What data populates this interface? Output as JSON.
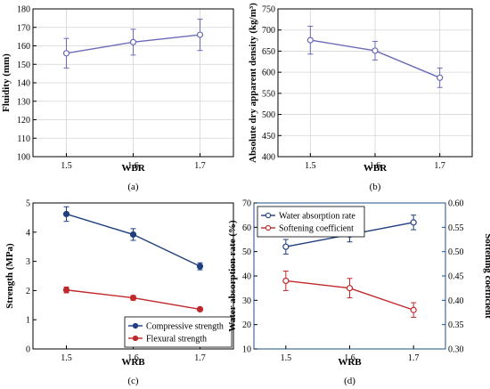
{
  "chart_data": [
    {
      "id": "a",
      "type": "line",
      "panel_label": "(a)",
      "xlabel": "WBR",
      "ylabel": "Fluidity (mm)",
      "x": [
        1.5,
        1.6,
        1.7
      ],
      "xticks": [
        "1.5",
        "1.6",
        "1.7"
      ],
      "xlim": [
        1.45,
        1.75
      ],
      "ylim": [
        100,
        180
      ],
      "yticks": [
        100,
        110,
        120,
        130,
        140,
        150,
        160,
        170,
        180
      ],
      "grid": true,
      "series": [
        {
          "values": [
            156,
            162,
            166
          ],
          "errors": [
            8,
            7,
            8.5
          ],
          "color": "#6a6ab8",
          "marker": "circle-open"
        }
      ]
    },
    {
      "id": "b",
      "type": "line",
      "panel_label": "(b)",
      "xlabel": "WBR",
      "ylabel": "Absolute dry apparent density (kg/m³)",
      "x": [
        1.5,
        1.6,
        1.7
      ],
      "xticks": [
        "1.5",
        "1.6",
        "1.7"
      ],
      "xlim": [
        1.45,
        1.75
      ],
      "ylim": [
        400,
        750
      ],
      "yticks": [
        400,
        450,
        500,
        550,
        600,
        650,
        700,
        750
      ],
      "grid": true,
      "series": [
        {
          "values": [
            676,
            651,
            587
          ],
          "errors": [
            33,
            22,
            23
          ],
          "color": "#6a6ab8",
          "marker": "circle-open"
        }
      ]
    },
    {
      "id": "c",
      "type": "line",
      "panel_label": "(c)",
      "xlabel": "WRB",
      "ylabel": "Strength (MPa)",
      "x": [
        1.5,
        1.6,
        1.7
      ],
      "xticks": [
        "1.5",
        "1.6",
        "1.7"
      ],
      "xlim": [
        1.45,
        1.75
      ],
      "ylim": [
        0,
        5
      ],
      "yticks": [
        0,
        1,
        2,
        3,
        4,
        5
      ],
      "grid": false,
      "legend": "bottom-right",
      "series": [
        {
          "name": "Compressive strength",
          "values": [
            4.62,
            3.92,
            2.83
          ],
          "errors": [
            0.25,
            0.2,
            0.12
          ],
          "color": "#1f3f7f",
          "marker": "circle-filled"
        },
        {
          "name": "Flexural strength",
          "values": [
            2.02,
            1.75,
            1.36
          ],
          "errors": [
            0.1,
            0.08,
            0.06
          ],
          "color": "#c0282c",
          "marker": "circle-filled"
        }
      ]
    },
    {
      "id": "d",
      "type": "line",
      "panel_label": "(d)",
      "xlabel": "WRB",
      "ylabel": "Water absorption rate (%)",
      "ylabel_right": "Softening coefficient",
      "x": [
        1.5,
        1.6,
        1.7
      ],
      "xticks": [
        "1.5",
        "1.6",
        "1.7"
      ],
      "xlim": [
        1.45,
        1.75
      ],
      "ylim": [
        10,
        70
      ],
      "yticks": [
        10,
        20,
        30,
        40,
        50,
        60,
        70
      ],
      "ylim_right": [
        0.3,
        0.6
      ],
      "yticks_right": [
        "0.30",
        "0.35",
        "0.40",
        "0.45",
        "0.50",
        "0.55",
        "0.60"
      ],
      "grid": false,
      "legend": "top-left",
      "series": [
        {
          "name": "Water absorption rate",
          "axis": "left",
          "values": [
            52,
            57,
            62
          ],
          "errors": [
            3,
            3,
            3
          ],
          "color": "#1f3f7f",
          "marker": "circle-open"
        },
        {
          "name": "Softening coefficient",
          "axis": "right",
          "values": [
            0.44,
            0.425,
            0.38
          ],
          "errors": [
            0.02,
            0.02,
            0.015
          ],
          "color": "#c0282c",
          "marker": "circle-open"
        }
      ]
    }
  ]
}
